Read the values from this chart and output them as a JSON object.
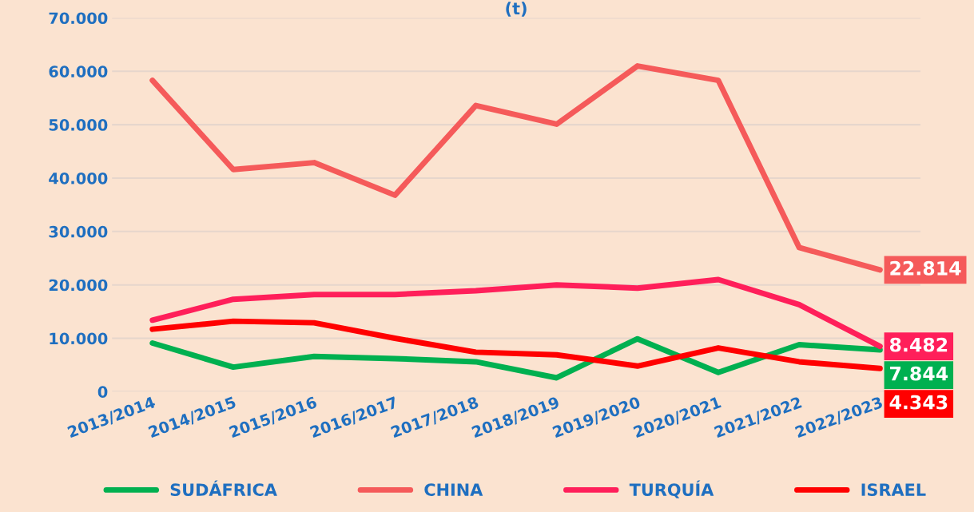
{
  "chart_data": {
    "type": "line",
    "title": "(t)",
    "categories": [
      "2013/2014",
      "2014/2015",
      "2015/2016",
      "2016/2017",
      "2017/2018",
      "2018/2019",
      "2019/2020",
      "2020/2021",
      "2021/2022",
      "2022/2023"
    ],
    "series": [
      {
        "name": "SUDÁFRICA",
        "color": "#00b050",
        "values": [
          9100,
          4600,
          6600,
          6200,
          5600,
          2600,
          9900,
          3600,
          8800,
          7844
        ],
        "value_labels": [
          null,
          null,
          null,
          null,
          null,
          null,
          null,
          null,
          null,
          "7.844"
        ]
      },
      {
        "name": "CHINA",
        "color": "#f55a5a",
        "values": [
          58300,
          41600,
          42900,
          36800,
          53600,
          50100,
          61000,
          58300,
          27000,
          22814
        ],
        "value_labels": [
          null,
          null,
          null,
          null,
          null,
          null,
          null,
          null,
          null,
          "22.814"
        ]
      },
      {
        "name": "TURQUÍA",
        "color": "#ff1f5a",
        "values": [
          13400,
          17300,
          18200,
          18200,
          18900,
          20000,
          19400,
          21000,
          16300,
          8482
        ],
        "value_labels": [
          null,
          null,
          null,
          null,
          null,
          null,
          null,
          null,
          null,
          "8.482"
        ]
      },
      {
        "name": "ISRAEL",
        "color": "#ff0000",
        "values": [
          11700,
          13200,
          12900,
          10000,
          7400,
          6900,
          4800,
          8200,
          5600,
          4343
        ],
        "value_labels": [
          null,
          null,
          null,
          null,
          null,
          null,
          null,
          null,
          null,
          "4.343"
        ]
      }
    ],
    "ylim": [
      0,
      70000
    ],
    "yticks": [
      0,
      {
        "value": 10000,
        "label": "10.000"
      },
      {
        "value": 20000,
        "label": "20.000"
      },
      {
        "value": 30000,
        "label": "30.000"
      },
      {
        "value": 40000,
        "label": "40.000"
      },
      {
        "value": 50000,
        "label": "50.000"
      },
      {
        "value": 60000,
        "label": "60.000"
      },
      {
        "value": 70000,
        "label": "70.000"
      }
    ],
    "grid": "y",
    "legend": "bottom",
    "marker": "none",
    "line_style": "solid"
  }
}
